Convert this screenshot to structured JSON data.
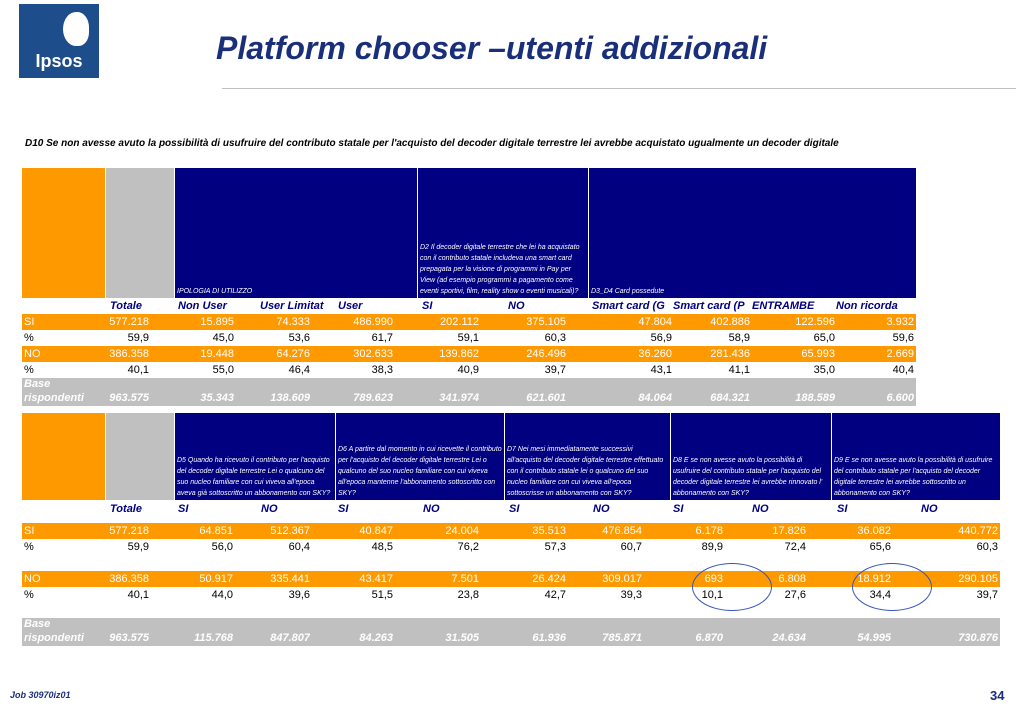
{
  "logo": {
    "text": "Ipsos"
  },
  "title": "Platform chooser –utenti addizionali",
  "question": "D10 Se non avesse avuto la possibilità di usufruire del contributo statale  per  l'acquisto del decoder digitale terrestre lei avrebbe acquistato ugualmente un decoder digitale",
  "table1": {
    "header_texts": [
      "IPOLOGIA DI UTILIZZO",
      "D2 Il decoder digitale terrestre che lei ha acquistato con il contributo statale includeva una smart card prepagata per la visione di programmi in Pay per View (ad esempio programmi a pagamento come eventi sportivi, film, reality show o eventi musicali)?",
      "D3_D4 Card possedute"
    ],
    "subheaders": [
      "Totale",
      "Non User",
      "User Limitat",
      "User",
      "SI",
      "NO",
      "Smart card (G",
      "Smart card (P",
      "ENTRAMBE",
      "Non ricorda"
    ],
    "rows": [
      {
        "label": "SI",
        "values": [
          "577.218",
          "15.895",
          "74.333",
          "486.990",
          "202.112",
          "375.105",
          "47.804",
          "402.886",
          "122.596",
          "3.932"
        ]
      },
      {
        "label": "%",
        "values": [
          "59,9",
          "45,0",
          "53,6",
          "61,7",
          "59,1",
          "60,3",
          "56,9",
          "58,9",
          "65,0",
          "59,6"
        ]
      },
      {
        "label": "NO",
        "values": [
          "386.358",
          "19.448",
          "64.276",
          "302.633",
          "139.862",
          "246.496",
          "36.260",
          "281.436",
          "65.993",
          "2.669"
        ]
      },
      {
        "label": "%",
        "values": [
          "40,1",
          "55,0",
          "46,4",
          "38,3",
          "40,9",
          "39,7",
          "43,1",
          "41,1",
          "35,0",
          "40,4"
        ]
      }
    ],
    "base": {
      "label1": "Base",
      "label2": "rispondenti",
      "values": [
        "963.575",
        "35.343",
        "138.609",
        "789.623",
        "341.974",
        "621.601",
        "84.064",
        "684.321",
        "188.589",
        "6.600"
      ]
    }
  },
  "table2": {
    "header_texts": [
      "D5 Quando ha ricevuto il contributo per l'acquisto del decoder digitale terrestre Lei o qualcuno del suo nucleo familiare con cui viveva all'epoca  aveva già sottoscritto un abbonamento con SKY?",
      "D6 A partire dal momento in cui ricevette il contributo per l'acquisto del decoder digitale terrestre Lei o qualcuno del suo nucleo familiare con cui viveva all'epoca mantenne l'abbonamento sottoscritto con SKY?",
      "D7 Nei mesi immediatamente successivi all'acquisto del decoder digitale terrestre effettuato con il contributo statale lei o qualcuno del suo nucleo familiare con cui viveva all'epoca sottoscrisse un abbonamento con SKY?",
      "D8 E se non avesse avuto la possibilità di usufruire del contributo statale  per  l'acquisto del decoder digitale terrestre lei avrebbe rinnovato l' abbonamento con SKY?",
      "D9 E se non avesse avuto la possibilità di usufruire del contributo statale  per  l'acquisto del decoder digitale terrestre lei avrebbe sottoscritto un abbonamento con SKY?"
    ],
    "subheaders": [
      "Totale",
      "SI",
      "NO",
      "SI",
      "NO",
      "SI",
      "NO",
      "SI",
      "NO",
      "SI",
      "NO"
    ],
    "rows": [
      {
        "label": "SI",
        "values": [
          "577.218",
          "64.851",
          "512.367",
          "40.847",
          "24.004",
          "35.513",
          "476.854",
          "6.178",
          "17.826",
          "36.082",
          "440.772"
        ]
      },
      {
        "label": "%",
        "values": [
          "59,9",
          "56,0",
          "60,4",
          "48,5",
          "76,2",
          "57,3",
          "60,7",
          "89,9",
          "72,4",
          "65,6",
          "60,3"
        ]
      },
      {
        "label": "NO",
        "values": [
          "386.358",
          "50.917",
          "335.441",
          "43.417",
          "7.501",
          "26.424",
          "309.017",
          "693",
          "6.808",
          "18.912",
          "290.105"
        ]
      },
      {
        "label": "%",
        "values": [
          "40,1",
          "44,0",
          "39,6",
          "51,5",
          "23,8",
          "42,7",
          "39,3",
          "10,1",
          "27,6",
          "34,4",
          "39,7"
        ]
      }
    ],
    "base": {
      "label1": "Base",
      "label2": "rispondenti",
      "values": [
        "963.575",
        "115.768",
        "847.807",
        "84.263",
        "31.505",
        "61.936",
        "785.871",
        "6.870",
        "24.634",
        "54.995",
        "730.876"
      ]
    }
  },
  "footer": {
    "job": "Job 30970iz01",
    "page": "34"
  },
  "colors": {
    "orange": "#ff9900",
    "navy": "#000080",
    "grey": "#c0c0c0",
    "title": "#1a2f7a"
  }
}
